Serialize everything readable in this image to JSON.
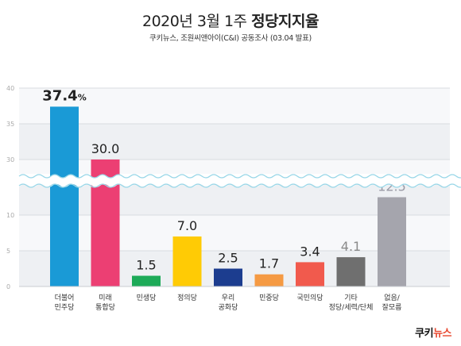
{
  "header": {
    "title_prefix": "2020년 3월 1주",
    "title_bold": "정당지지율",
    "subtitle": "쿠키뉴스, 조원씨앤아이(C&I) 공동조사 (03.04 발표)"
  },
  "logo": {
    "part1": "쿠키",
    "part2": "뉴스"
  },
  "chart_data": {
    "type": "bar",
    "axis_break": [
      15,
      28
    ],
    "ylim": [
      0,
      40
    ],
    "yticks": [
      "0",
      "5",
      "10",
      "30",
      "35",
      "40"
    ],
    "grid": true,
    "categories": [
      [
        "더불어",
        "민주당"
      ],
      [
        "미래",
        "통합당"
      ],
      [
        "민생당"
      ],
      [
        "정의당"
      ],
      [
        "우리",
        "공화당"
      ],
      [
        "민중당"
      ],
      [
        "국민의당"
      ],
      [
        "기타",
        "정당/세력/단체"
      ],
      [
        "없음/",
        "잘모름"
      ]
    ],
    "values": [
      37.4,
      30.0,
      1.5,
      7.0,
      2.5,
      1.7,
      3.4,
      4.1,
      12.5
    ],
    "value_labels": [
      "37.4",
      "30.0",
      "1.5",
      "7.0",
      "2.5",
      "1.7",
      "3.4",
      "4.1",
      "12.5"
    ],
    "highlight_suffix": "%",
    "colors": [
      "#1a9ad6",
      "#ec3f73",
      "#1daa58",
      "#ffcb05",
      "#1c3d8f",
      "#f59a43",
      "#f15a4d",
      "#6f6f6f",
      "#a5a5ad"
    ]
  }
}
